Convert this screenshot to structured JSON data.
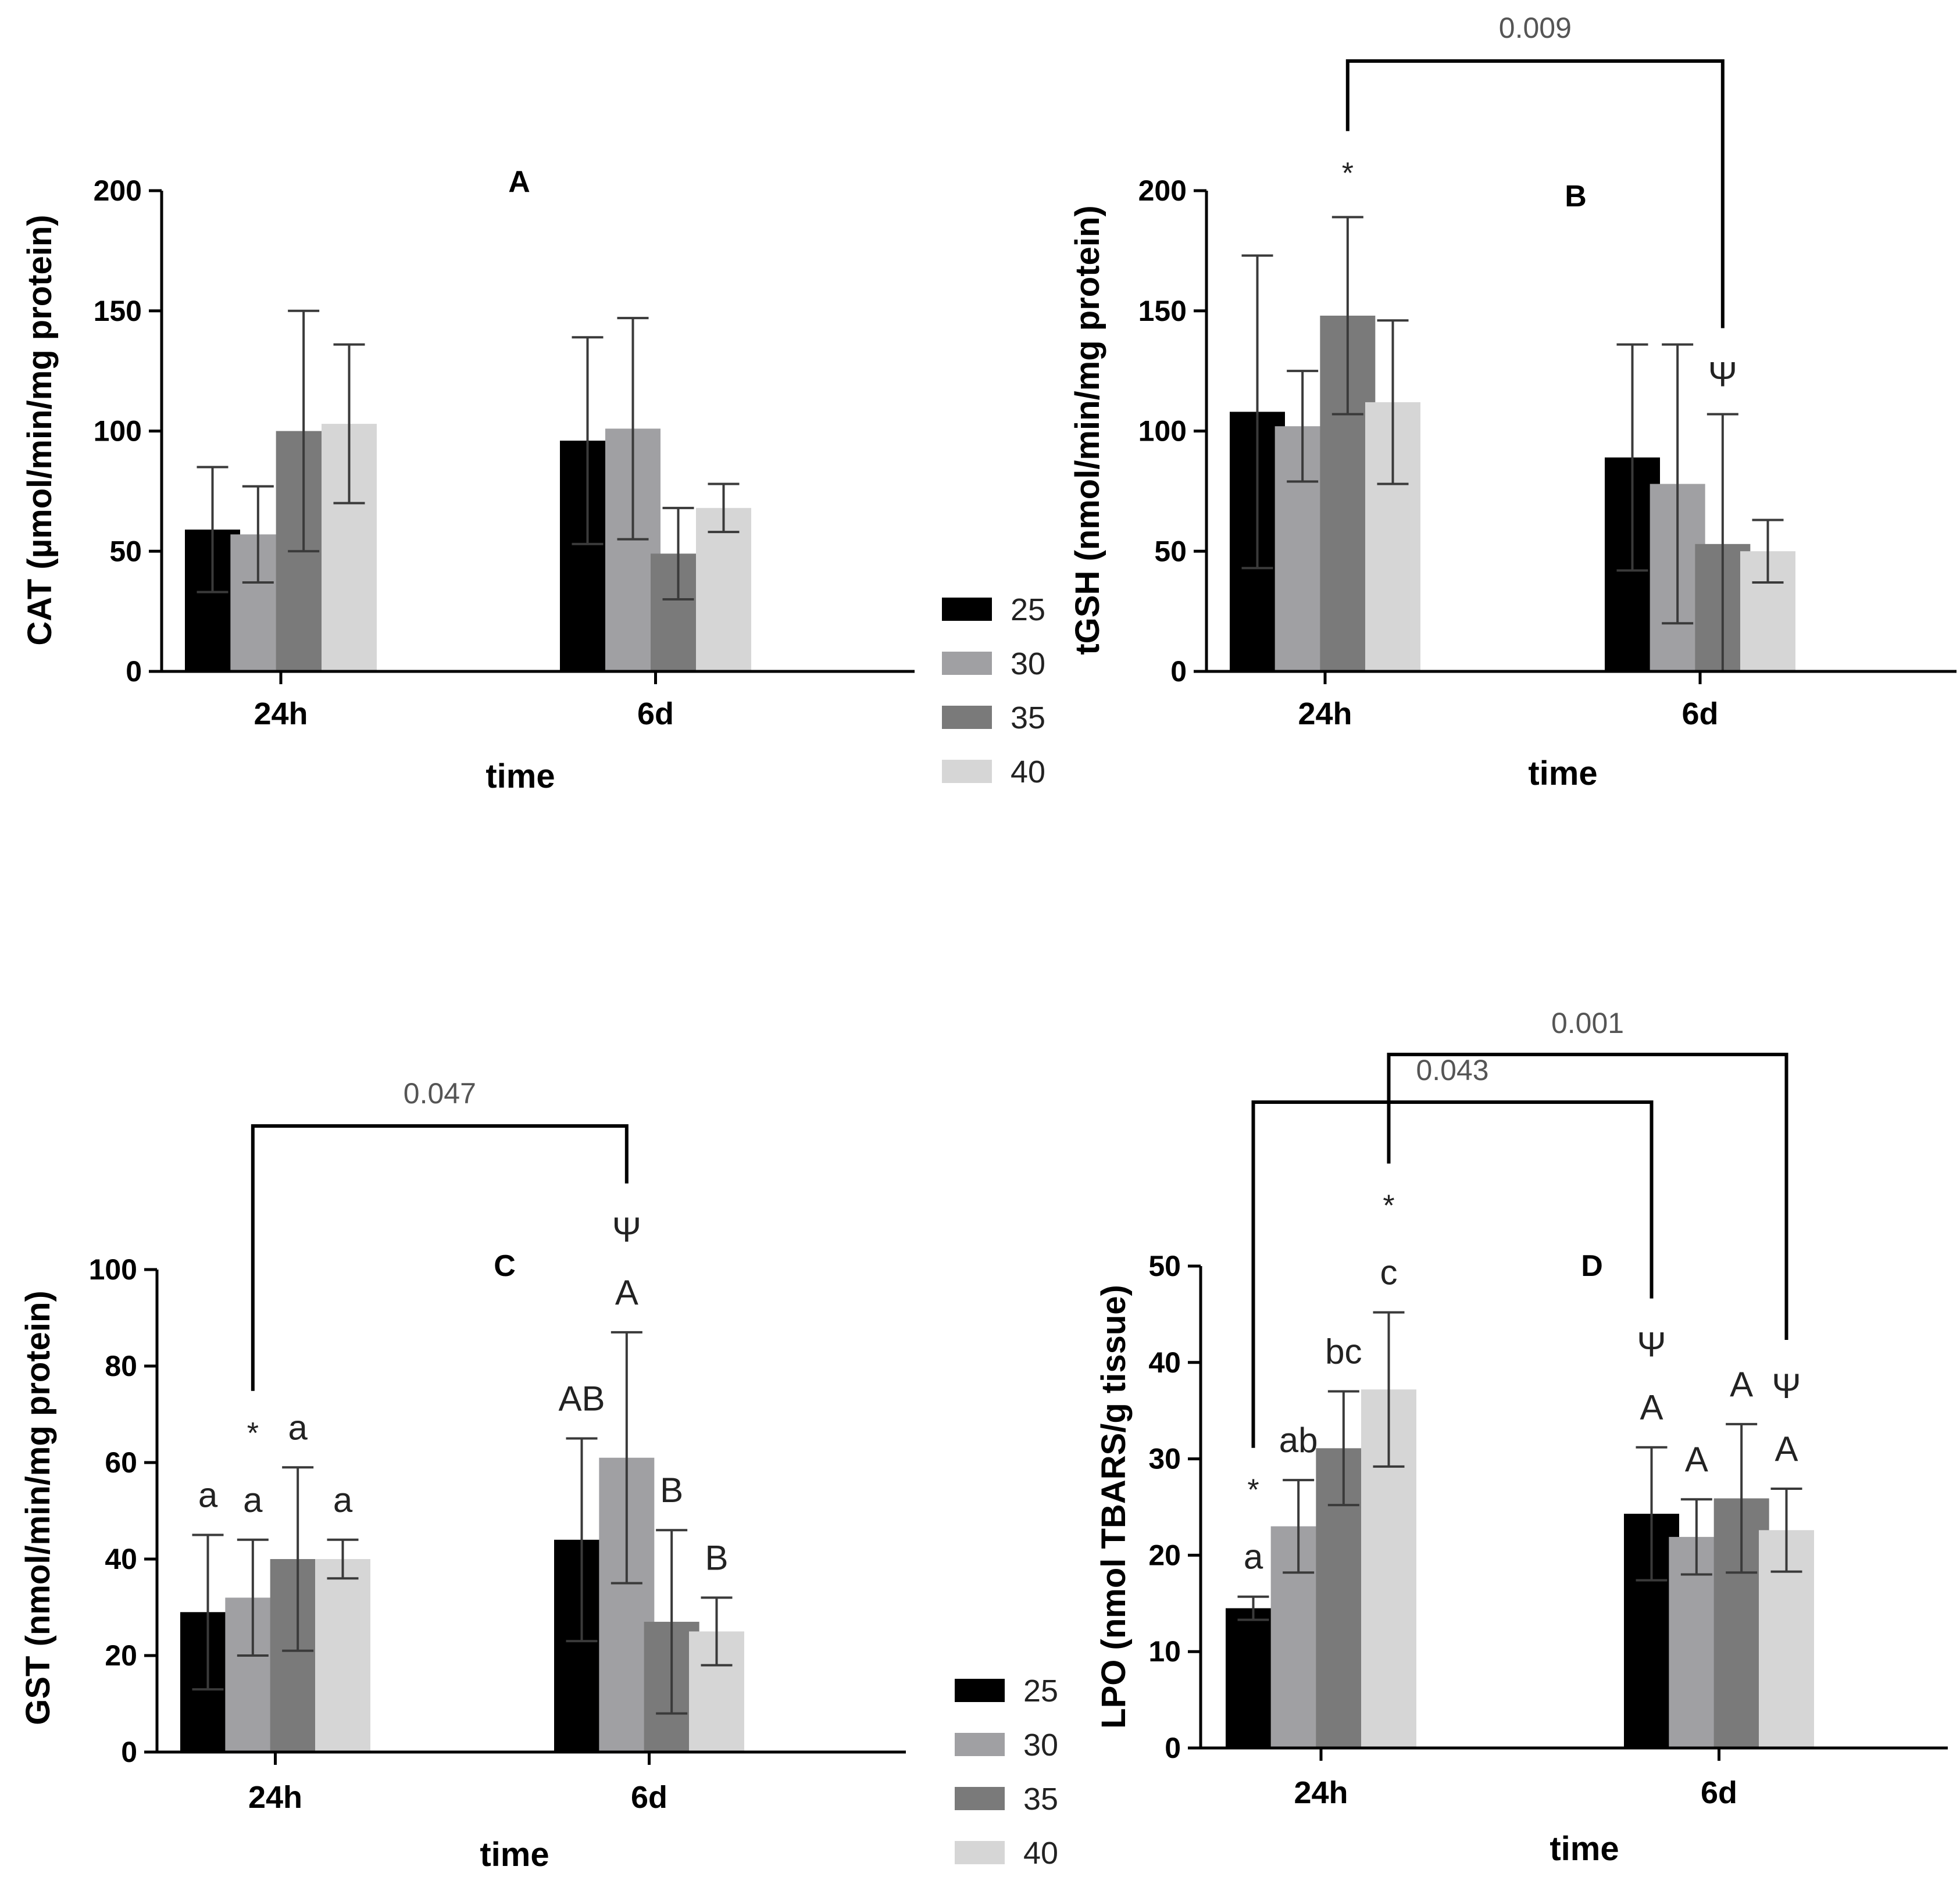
{
  "chart_data": [
    {
      "panel": "A",
      "type": "bar",
      "ylabel": "CAT (µmol/min/mg protein)",
      "xlabel": "time",
      "ylim": [
        0,
        200
      ],
      "yticks": [
        0,
        50,
        100,
        150,
        200
      ],
      "categories": [
        "24h",
        "6d"
      ],
      "series": [
        {
          "name": "25",
          "values": [
            59,
            96
          ],
          "errors": [
            26,
            43
          ]
        },
        {
          "name": "30",
          "values": [
            57,
            101
          ],
          "errors": [
            20,
            46
          ]
        },
        {
          "name": "35",
          "values": [
            100,
            49
          ],
          "errors": [
            50,
            19
          ]
        },
        {
          "name": "40",
          "values": [
            103,
            68
          ],
          "errors": [
            33,
            10
          ]
        }
      ],
      "annotations": [],
      "brackets": []
    },
    {
      "panel": "B",
      "type": "bar",
      "ylabel": "tGSH (nmol/min/mg protein)",
      "xlabel": "time",
      "ylim": [
        0,
        200
      ],
      "yticks": [
        0,
        50,
        100,
        150,
        200
      ],
      "categories": [
        "24h",
        "6d"
      ],
      "series": [
        {
          "name": "25",
          "values": [
            108,
            89
          ],
          "errors": [
            65,
            47
          ]
        },
        {
          "name": "30",
          "values": [
            102,
            78
          ],
          "errors": [
            23,
            58
          ]
        },
        {
          "name": "35",
          "values": [
            148,
            53
          ],
          "errors": [
            41,
            54
          ]
        },
        {
          "name": "40",
          "values": [
            112,
            50
          ],
          "errors": [
            34,
            13
          ]
        }
      ],
      "annotations": [
        {
          "cat": 0,
          "series": 2,
          "lines": [
            "*"
          ]
        },
        {
          "cat": 1,
          "series": 2,
          "lines": [
            "Ψ"
          ]
        }
      ],
      "brackets": [
        {
          "from": [
            0,
            2
          ],
          "to": [
            1,
            2
          ],
          "label": "0.009",
          "level": 0
        }
      ]
    },
    {
      "panel": "C",
      "type": "bar",
      "ylabel": "GST (nmol/min/mg protein)",
      "xlabel": "time",
      "ylim": [
        0,
        100
      ],
      "yticks": [
        0,
        20,
        40,
        60,
        80,
        100
      ],
      "categories": [
        "24h",
        "6d"
      ],
      "series": [
        {
          "name": "25",
          "values": [
            29,
            44
          ],
          "errors": [
            16,
            21
          ]
        },
        {
          "name": "30",
          "values": [
            32,
            61
          ],
          "errors": [
            12,
            26
          ]
        },
        {
          "name": "35",
          "values": [
            40,
            27
          ],
          "errors": [
            19,
            19
          ]
        },
        {
          "name": "40",
          "values": [
            40,
            25
          ],
          "errors": [
            4,
            7
          ]
        }
      ],
      "annotations": [
        {
          "cat": 0,
          "series": 0,
          "lines": [
            "a"
          ]
        },
        {
          "cat": 0,
          "series": 1,
          "lines": [
            "*",
            "a"
          ]
        },
        {
          "cat": 0,
          "series": 2,
          "lines": [
            "a"
          ]
        },
        {
          "cat": 0,
          "series": 3,
          "lines": [
            "a"
          ]
        },
        {
          "cat": 1,
          "series": 0,
          "lines": [
            "AB"
          ]
        },
        {
          "cat": 1,
          "series": 1,
          "lines": [
            "Ψ",
            "A"
          ]
        },
        {
          "cat": 1,
          "series": 2,
          "lines": [
            "B"
          ]
        },
        {
          "cat": 1,
          "series": 3,
          "lines": [
            "B"
          ]
        }
      ],
      "brackets": [
        {
          "from": [
            0,
            1
          ],
          "to": [
            1,
            1
          ],
          "label": "0.047",
          "level": 0
        }
      ]
    },
    {
      "panel": "D",
      "type": "bar",
      "ylabel": "LPO (nmol TBARS/g tissue)",
      "xlabel": "time",
      "ylim": [
        0,
        50
      ],
      "yticks": [
        0,
        10,
        20,
        30,
        40,
        50
      ],
      "categories": [
        "24h",
        "6d"
      ],
      "series": [
        {
          "name": "25",
          "values": [
            14.5,
            24.3
          ],
          "errors": [
            1.2,
            6.9
          ]
        },
        {
          "name": "30",
          "values": [
            23.0,
            21.9
          ],
          "errors": [
            4.8,
            3.9
          ]
        },
        {
          "name": "35",
          "values": [
            31.1,
            25.9
          ],
          "errors": [
            5.9,
            7.7
          ]
        },
        {
          "name": "40",
          "values": [
            37.2,
            22.6
          ],
          "errors": [
            8.0,
            4.3
          ]
        }
      ],
      "annotations": [
        {
          "cat": 0,
          "series": 0,
          "lines": [
            "*",
            "a"
          ]
        },
        {
          "cat": 0,
          "series": 1,
          "lines": [
            "ab"
          ]
        },
        {
          "cat": 0,
          "series": 2,
          "lines": [
            "bc"
          ]
        },
        {
          "cat": 0,
          "series": 3,
          "lines": [
            "*",
            "c"
          ]
        },
        {
          "cat": 1,
          "series": 0,
          "lines": [
            "Ψ",
            "A"
          ]
        },
        {
          "cat": 1,
          "series": 1,
          "lines": [
            "A"
          ]
        },
        {
          "cat": 1,
          "series": 2,
          "lines": [
            "A"
          ]
        },
        {
          "cat": 1,
          "series": 3,
          "lines": [
            "Ψ",
            "A"
          ]
        }
      ],
      "brackets": [
        {
          "from": [
            0,
            0
          ],
          "to": [
            1,
            0
          ],
          "label": "0.043",
          "level": 0
        },
        {
          "from": [
            0,
            3
          ],
          "to": [
            1,
            3
          ],
          "label": "0.001",
          "level": 1
        }
      ]
    }
  ],
  "legend": {
    "entries": [
      "25",
      "30",
      "35",
      "40"
    ],
    "colors": [
      "#000000",
      "#a0a0a3",
      "#7a7a7a",
      "#d6d6d6"
    ]
  }
}
